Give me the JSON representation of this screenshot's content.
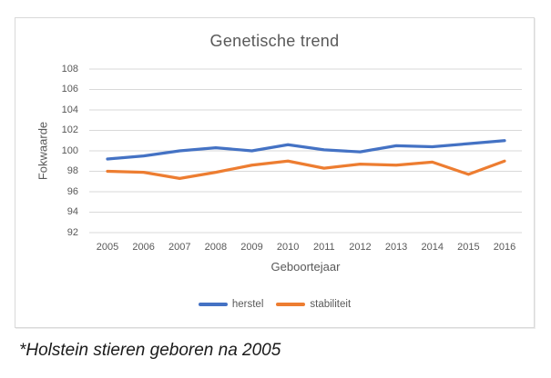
{
  "colors": {
    "herstel": "#4472C4",
    "stabiliteit": "#ED7D31",
    "gridline": "#D9D9D9",
    "axis_text": "#595959",
    "title_text": "#595959",
    "box_border": "#D9D9D9",
    "footnote_text": "#1A1A1A",
    "background": "#FFFFFF"
  },
  "chart_data": {
    "type": "line",
    "title": "Genetische trend",
    "xlabel": "Geboortejaar",
    "ylabel": "Fokwaarde",
    "categories": [
      "2005",
      "2006",
      "2007",
      "2008",
      "2009",
      "2010",
      "2011",
      "2012",
      "2013",
      "2014",
      "2015",
      "2016"
    ],
    "series": [
      {
        "name": "herstel",
        "color": "#4472C4",
        "values": [
          99.2,
          99.5,
          100.0,
          100.3,
          100.0,
          100.6,
          100.1,
          99.9,
          100.5,
          100.4,
          100.7,
          101.0
        ]
      },
      {
        "name": "stabiliteit",
        "color": "#ED7D31",
        "values": [
          98.0,
          97.9,
          97.3,
          97.9,
          98.6,
          99.0,
          98.3,
          98.7,
          98.6,
          98.9,
          97.7,
          99.0
        ]
      }
    ],
    "ylim": [
      92,
      108
    ],
    "yticks": [
      108,
      106,
      104,
      102,
      100,
      98,
      96,
      94,
      92
    ],
    "ytick_step": 2,
    "grid": true,
    "legend_position": "bottom"
  },
  "footnote": "*Holstein stieren geboren na 2005"
}
